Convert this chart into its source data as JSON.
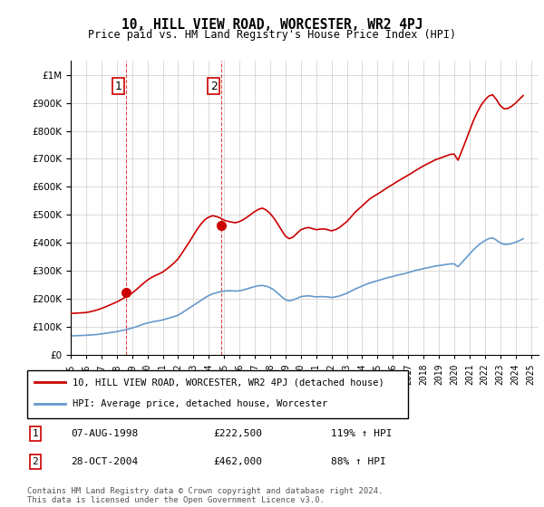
{
  "title": "10, HILL VIEW ROAD, WORCESTER, WR2 4PJ",
  "subtitle": "Price paid vs. HM Land Registry's House Price Index (HPI)",
  "legend_line1": "10, HILL VIEW ROAD, WORCESTER, WR2 4PJ (detached house)",
  "legend_line2": "HPI: Average price, detached house, Worcester",
  "transaction1_label": "1",
  "transaction1_date": "07-AUG-1998",
  "transaction1_price": "£222,500",
  "transaction1_hpi": "119% ↑ HPI",
  "transaction2_label": "2",
  "transaction2_date": "28-OCT-2004",
  "transaction2_price": "£462,000",
  "transaction2_hpi": "88% ↑ HPI",
  "footnote": "Contains HM Land Registry data © Crown copyright and database right 2024.\nThis data is licensed under the Open Government Licence v3.0.",
  "red_color": "#cc0000",
  "blue_color": "#6699cc",
  "background_color": "#ffffff",
  "grid_color": "#cccccc",
  "sale_marker_color": "#cc0000",
  "xlim_start": 1995.0,
  "xlim_end": 2025.5,
  "ylim_min": 0,
  "ylim_max": 1050000,
  "hpi_data": {
    "years": [
      1995.0,
      1995.25,
      1995.5,
      1995.75,
      1996.0,
      1996.25,
      1996.5,
      1996.75,
      1997.0,
      1997.25,
      1997.5,
      1997.75,
      1998.0,
      1998.25,
      1998.5,
      1998.75,
      1999.0,
      1999.25,
      1999.5,
      1999.75,
      2000.0,
      2000.25,
      2000.5,
      2000.75,
      2001.0,
      2001.25,
      2001.5,
      2001.75,
      2002.0,
      2002.25,
      2002.5,
      2002.75,
      2003.0,
      2003.25,
      2003.5,
      2003.75,
      2004.0,
      2004.25,
      2004.5,
      2004.75,
      2005.0,
      2005.25,
      2005.5,
      2005.75,
      2006.0,
      2006.25,
      2006.5,
      2006.75,
      2007.0,
      2007.25,
      2007.5,
      2007.75,
      2008.0,
      2008.25,
      2008.5,
      2008.75,
      2009.0,
      2009.25,
      2009.5,
      2009.75,
      2010.0,
      2010.25,
      2010.5,
      2010.75,
      2011.0,
      2011.25,
      2011.5,
      2011.75,
      2012.0,
      2012.25,
      2012.5,
      2012.75,
      2013.0,
      2013.25,
      2013.5,
      2013.75,
      2014.0,
      2014.25,
      2014.5,
      2014.75,
      2015.0,
      2015.25,
      2015.5,
      2015.75,
      2016.0,
      2016.25,
      2016.5,
      2016.75,
      2017.0,
      2017.25,
      2017.5,
      2017.75,
      2018.0,
      2018.25,
      2018.5,
      2018.75,
      2019.0,
      2019.25,
      2019.5,
      2019.75,
      2020.0,
      2020.25,
      2020.5,
      2020.75,
      2021.0,
      2021.25,
      2021.5,
      2021.75,
      2022.0,
      2022.25,
      2022.5,
      2022.75,
      2023.0,
      2023.25,
      2023.5,
      2023.75,
      2024.0,
      2024.25,
      2024.5
    ],
    "values": [
      68000,
      68500,
      69000,
      69500,
      70000,
      71000,
      72000,
      73000,
      75000,
      77000,
      79000,
      81000,
      83000,
      86000,
      89000,
      92000,
      96000,
      100000,
      105000,
      110000,
      114000,
      117000,
      120000,
      122000,
      125000,
      129000,
      133000,
      137000,
      142000,
      150000,
      159000,
      168000,
      177000,
      186000,
      195000,
      204000,
      212000,
      218000,
      222000,
      226000,
      228000,
      229000,
      229000,
      228000,
      229000,
      232000,
      236000,
      240000,
      244000,
      247000,
      248000,
      245000,
      240000,
      232000,
      220000,
      208000,
      197000,
      193000,
      196000,
      202000,
      208000,
      210000,
      211000,
      209000,
      207000,
      208000,
      208000,
      207000,
      205000,
      207000,
      210000,
      215000,
      220000,
      227000,
      234000,
      240000,
      246000,
      252000,
      257000,
      261000,
      265000,
      269000,
      273000,
      277000,
      280000,
      284000,
      287000,
      290000,
      294000,
      298000,
      302000,
      305000,
      308000,
      311000,
      314000,
      317000,
      319000,
      321000,
      323000,
      325000,
      325000,
      315000,
      330000,
      345000,
      360000,
      375000,
      388000,
      399000,
      408000,
      415000,
      418000,
      410000,
      400000,
      395000,
      395000,
      398000,
      402000,
      408000,
      415000
    ]
  },
  "price_data": {
    "years": [
      1995.0,
      1995.25,
      1995.5,
      1995.75,
      1996.0,
      1996.25,
      1996.5,
      1996.75,
      1997.0,
      1997.25,
      1997.5,
      1997.75,
      1998.0,
      1998.25,
      1998.5,
      1998.75,
      1999.0,
      1999.25,
      1999.5,
      1999.75,
      2000.0,
      2000.25,
      2000.5,
      2000.75,
      2001.0,
      2001.25,
      2001.5,
      2001.75,
      2002.0,
      2002.25,
      2002.5,
      2002.75,
      2003.0,
      2003.25,
      2003.5,
      2003.75,
      2004.0,
      2004.25,
      2004.5,
      2004.75,
      2005.0,
      2005.25,
      2005.5,
      2005.75,
      2006.0,
      2006.25,
      2006.5,
      2006.75,
      2007.0,
      2007.25,
      2007.5,
      2007.75,
      2008.0,
      2008.25,
      2008.5,
      2008.75,
      2009.0,
      2009.25,
      2009.5,
      2009.75,
      2010.0,
      2010.25,
      2010.5,
      2010.75,
      2011.0,
      2011.25,
      2011.5,
      2011.75,
      2012.0,
      2012.25,
      2012.5,
      2012.75,
      2013.0,
      2013.25,
      2013.5,
      2013.75,
      2014.0,
      2014.25,
      2014.5,
      2014.75,
      2015.0,
      2015.25,
      2015.5,
      2015.75,
      2016.0,
      2016.25,
      2016.5,
      2016.75,
      2017.0,
      2017.25,
      2017.5,
      2017.75,
      2018.0,
      2018.25,
      2018.5,
      2018.75,
      2019.0,
      2019.25,
      2019.5,
      2019.75,
      2020.0,
      2020.25,
      2020.5,
      2020.75,
      2021.0,
      2021.25,
      2021.5,
      2021.75,
      2022.0,
      2022.25,
      2022.5,
      2022.75,
      2023.0,
      2023.25,
      2023.5,
      2023.75,
      2024.0,
      2024.25,
      2024.5
    ],
    "values": [
      148000,
      148800,
      149600,
      150400,
      151200,
      154000,
      157000,
      161000,
      166000,
      171000,
      177000,
      183000,
      189000,
      196000,
      204000,
      212000,
      221000,
      232000,
      244000,
      256000,
      267000,
      276000,
      283000,
      289000,
      296000,
      306000,
      317000,
      329000,
      343000,
      363000,
      384000,
      405000,
      427000,
      449000,
      468000,
      483000,
      492000,
      497000,
      494000,
      489000,
      481000,
      477000,
      474000,
      472000,
      476000,
      483000,
      492000,
      502000,
      512000,
      520000,
      524000,
      517000,
      505000,
      488000,
      467000,
      445000,
      424000,
      415000,
      421000,
      434000,
      447000,
      452000,
      455000,
      451000,
      447000,
      449000,
      450000,
      447000,
      443000,
      447000,
      454000,
      465000,
      476000,
      491000,
      507000,
      520000,
      532000,
      545000,
      557000,
      566000,
      574000,
      583000,
      592000,
      601000,
      609000,
      618000,
      626000,
      634000,
      642000,
      650000,
      659000,
      667000,
      675000,
      682000,
      689000,
      696000,
      701000,
      706000,
      711000,
      716000,
      717000,
      695000,
      729000,
      764000,
      800000,
      836000,
      866000,
      891000,
      910000,
      924000,
      929000,
      912000,
      890000,
      879000,
      880000,
      888000,
      899000,
      913000,
      926000
    ]
  },
  "sale1_year": 1998.6,
  "sale1_price": 222500,
  "sale2_year": 2004.83,
  "sale2_price": 462000,
  "dashed_line1_x": 1998.6,
  "dashed_line2_x": 2004.83,
  "x_tick_years": [
    1995,
    1996,
    1997,
    1998,
    1999,
    2000,
    2001,
    2002,
    2003,
    2004,
    2005,
    2006,
    2007,
    2008,
    2009,
    2010,
    2011,
    2012,
    2013,
    2014,
    2015,
    2016,
    2017,
    2018,
    2019,
    2020,
    2021,
    2022,
    2023,
    2024,
    2025
  ]
}
